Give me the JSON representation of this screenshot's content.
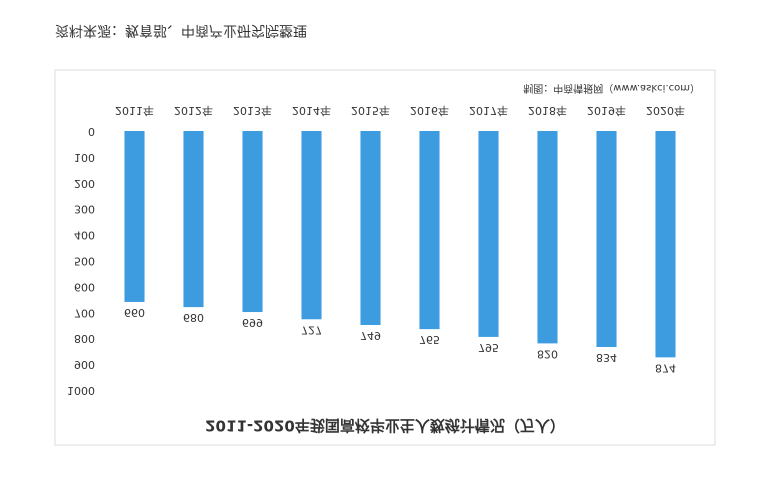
{
  "chart_data": {
    "type": "bar",
    "title": "2011-2020年我国高校毕业生人数统计情况（万人）",
    "note": "制图：中商情报网（www.askci.com）",
    "source": "资料来源：教育部、中商产业研究院整理",
    "categories": [
      "2011年",
      "2012年",
      "2013年",
      "2014年",
      "2015年",
      "2016年",
      "2017年",
      "2018年",
      "2019年",
      "2020年"
    ],
    "values": [
      660,
      680,
      699,
      727,
      749,
      765,
      795,
      820,
      834,
      874
    ],
    "color": "#3d9be0",
    "ylim": [
      0,
      1000
    ],
    "yticks": [
      0,
      100,
      200,
      300,
      400,
      500,
      600,
      700,
      800,
      900,
      1000
    ]
  }
}
